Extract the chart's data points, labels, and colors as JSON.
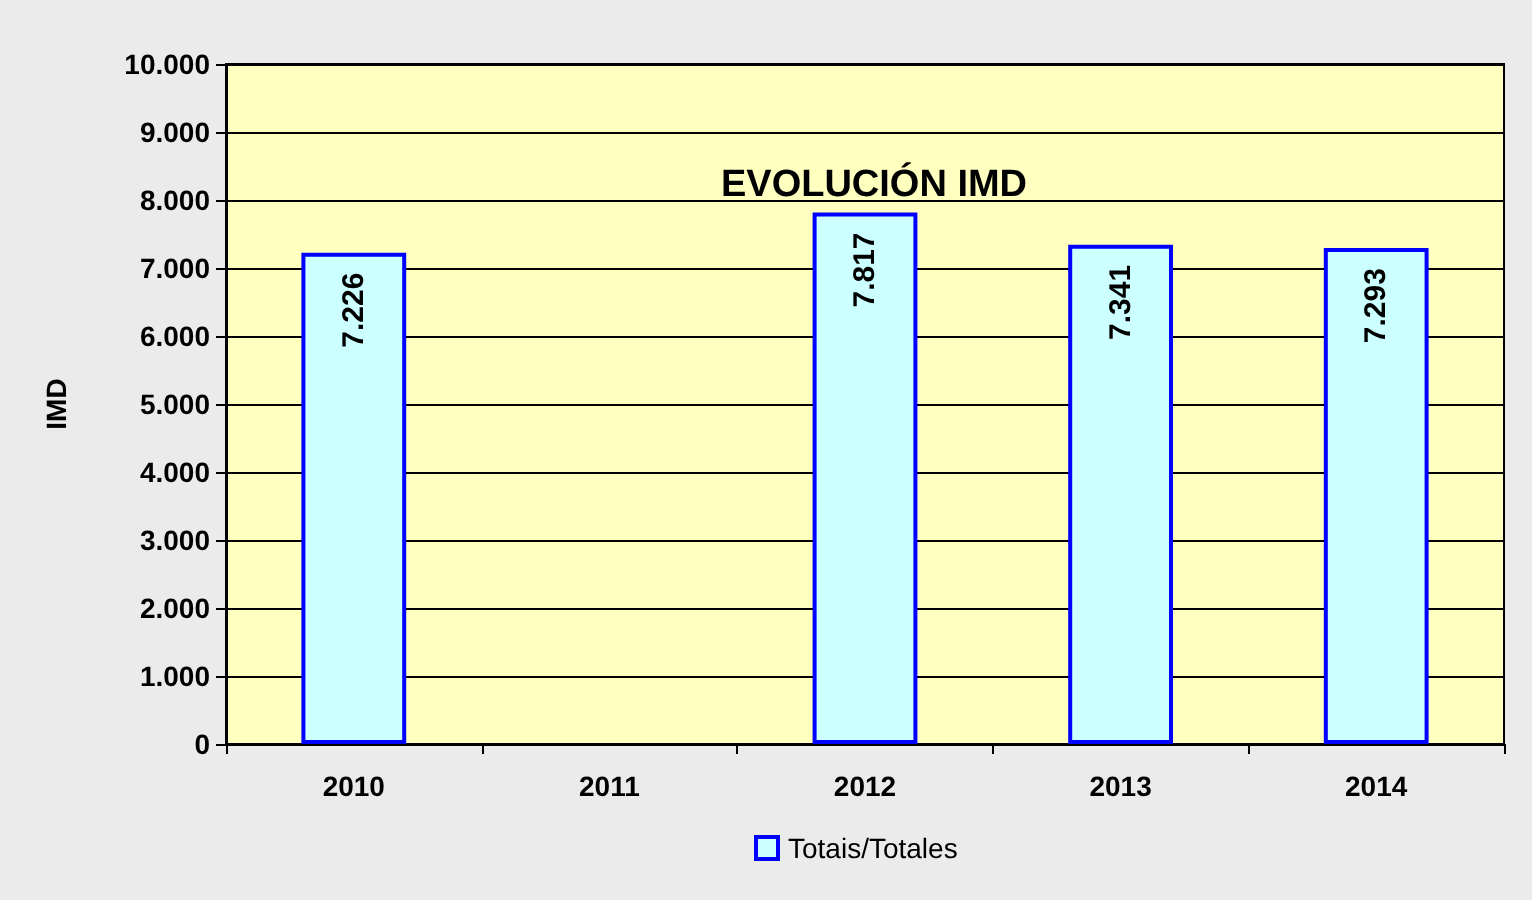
{
  "chart_data": {
    "type": "bar",
    "title": "EVOLUCIÓN IMD",
    "ylabel": "IMD",
    "categories": [
      "2010",
      "2011",
      "2012",
      "2013",
      "2014"
    ],
    "series": [
      {
        "name": "Totais/Totales",
        "color": "#ccffff",
        "values": [
          7226,
          null,
          7817,
          7341,
          7293
        ],
        "value_labels": [
          "7.226",
          null,
          "7.817",
          "7.341",
          "7.293"
        ]
      }
    ],
    "ylim": [
      0,
      10000
    ],
    "yticks": [
      {
        "value": 0,
        "label": "0"
      },
      {
        "value": 1000,
        "label": "1.000"
      },
      {
        "value": 2000,
        "label": "2.000"
      },
      {
        "value": 3000,
        "label": "3.000"
      },
      {
        "value": 4000,
        "label": "4.000"
      },
      {
        "value": 5000,
        "label": "5.000"
      },
      {
        "value": 6000,
        "label": "6.000"
      },
      {
        "value": 7000,
        "label": "7.000"
      },
      {
        "value": 8000,
        "label": "8.000"
      },
      {
        "value": 9000,
        "label": "9.000"
      },
      {
        "value": 10000,
        "label": "10.000"
      }
    ],
    "grid": "y",
    "legend": "bottom"
  }
}
